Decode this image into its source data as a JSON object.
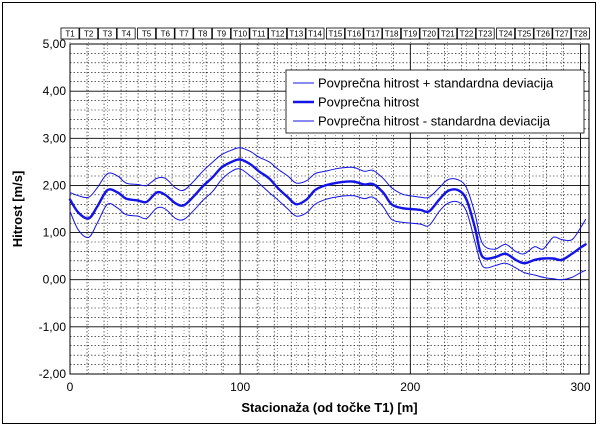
{
  "chart_data": {
    "type": "line",
    "xlabel": "Stacionaža (od točke T1) [m]",
    "ylabel": "Hitrost [m/s]",
    "xlim": [
      0,
      305
    ],
    "ylim": [
      -2,
      5
    ],
    "x_ticks": [
      0,
      100,
      200,
      300
    ],
    "x_tick_labels": [
      "0",
      "100",
      "200",
      "300"
    ],
    "y_ticks": [
      -2,
      -1,
      0,
      1,
      2,
      3,
      4,
      5
    ],
    "y_tick_labels": [
      "-2,00",
      "-1,00",
      "0,00",
      "1,00",
      "2,00",
      "3,00",
      "4,00",
      "5,00"
    ],
    "grid": true,
    "legend_position": "top-right",
    "point_markers": {
      "labels": [
        "T1",
        "T2",
        "T3",
        "T4",
        "T5",
        "T6",
        "T7",
        "T8",
        "T9",
        "T10",
        "T11",
        "T12",
        "T13",
        "T14",
        "T15",
        "T16",
        "T17",
        "T18",
        "T19",
        "T20",
        "T21",
        "T22",
        "T23",
        "T24",
        "T25",
        "T26",
        "T27",
        "T28"
      ],
      "x": [
        0,
        11,
        22,
        33,
        45,
        56,
        67,
        78,
        89,
        100,
        111,
        122,
        133,
        144,
        156,
        167,
        178,
        189,
        200,
        211,
        222,
        233,
        244,
        256,
        267,
        278,
        289,
        300
      ]
    },
    "series": [
      {
        "name": "Povprečna hitrost + standardna deviacija",
        "color": "#1414e6",
        "width": 1,
        "x": [
          0,
          5,
          11,
          16,
          22,
          28,
          33,
          40,
          45,
          51,
          56,
          62,
          67,
          73,
          78,
          84,
          89,
          95,
          100,
          106,
          111,
          117,
          122,
          128,
          133,
          139,
          144,
          150,
          156,
          162,
          167,
          173,
          178,
          184,
          189,
          195,
          200,
          206,
          211,
          217,
          222,
          228,
          233,
          238,
          241,
          244,
          250,
          256,
          262,
          267,
          273,
          278,
          284,
          289,
          295,
          300,
          303
        ],
        "y": [
          1.85,
          1.78,
          1.75,
          1.95,
          2.25,
          2.2,
          2.05,
          2.02,
          2.0,
          2.15,
          2.15,
          1.95,
          1.9,
          2.1,
          2.3,
          2.5,
          2.65,
          2.75,
          2.8,
          2.72,
          2.6,
          2.5,
          2.35,
          2.2,
          2.05,
          2.1,
          2.25,
          2.3,
          2.35,
          2.38,
          2.38,
          2.3,
          2.32,
          2.15,
          1.95,
          1.82,
          1.78,
          1.75,
          1.75,
          1.95,
          2.12,
          2.12,
          1.95,
          1.4,
          0.9,
          0.7,
          0.65,
          0.75,
          0.6,
          0.55,
          0.7,
          0.65,
          0.9,
          0.85,
          0.85,
          1.1,
          1.28
        ]
      },
      {
        "name": "Povprečna hitrost",
        "color": "#1414e6",
        "width": 2.4,
        "x": [
          0,
          5,
          11,
          16,
          22,
          28,
          33,
          40,
          45,
          51,
          56,
          62,
          67,
          73,
          78,
          84,
          89,
          95,
          100,
          106,
          111,
          117,
          122,
          128,
          133,
          139,
          144,
          150,
          156,
          162,
          167,
          173,
          178,
          184,
          189,
          195,
          200,
          206,
          211,
          217,
          222,
          228,
          233,
          238,
          241,
          244,
          250,
          256,
          262,
          267,
          273,
          278,
          284,
          289,
          295,
          300,
          303
        ],
        "y": [
          1.7,
          1.42,
          1.3,
          1.55,
          1.9,
          1.85,
          1.72,
          1.68,
          1.65,
          1.85,
          1.8,
          1.62,
          1.58,
          1.78,
          1.98,
          2.18,
          2.38,
          2.5,
          2.55,
          2.45,
          2.3,
          2.15,
          1.95,
          1.75,
          1.6,
          1.7,
          1.9,
          2.0,
          2.05,
          2.08,
          2.08,
          2.02,
          2.03,
          1.85,
          1.6,
          1.52,
          1.5,
          1.48,
          1.45,
          1.7,
          1.88,
          1.9,
          1.7,
          1.1,
          0.6,
          0.45,
          0.48,
          0.55,
          0.42,
          0.35,
          0.42,
          0.45,
          0.45,
          0.42,
          0.55,
          0.68,
          0.75
        ]
      },
      {
        "name": "Povprečna hitrost - standardna deviacija",
        "color": "#1414e6",
        "width": 1,
        "x": [
          0,
          5,
          11,
          16,
          22,
          28,
          33,
          40,
          45,
          51,
          56,
          62,
          67,
          73,
          78,
          84,
          89,
          95,
          100,
          106,
          111,
          117,
          122,
          128,
          133,
          139,
          144,
          150,
          156,
          162,
          167,
          173,
          178,
          184,
          189,
          195,
          200,
          206,
          211,
          217,
          222,
          228,
          233,
          238,
          241,
          244,
          250,
          256,
          262,
          267,
          273,
          278,
          284,
          289,
          295,
          300,
          303
        ],
        "y": [
          1.45,
          1.05,
          0.9,
          1.2,
          1.6,
          1.52,
          1.38,
          1.35,
          1.3,
          1.52,
          1.5,
          1.3,
          1.28,
          1.48,
          1.68,
          1.88,
          2.12,
          2.3,
          2.35,
          2.2,
          2.05,
          1.85,
          1.7,
          1.5,
          1.35,
          1.42,
          1.6,
          1.7,
          1.75,
          1.78,
          1.78,
          1.72,
          1.75,
          1.55,
          1.28,
          1.22,
          1.2,
          1.18,
          1.15,
          1.45,
          1.62,
          1.65,
          1.45,
          0.8,
          0.4,
          0.25,
          0.3,
          0.35,
          0.25,
          0.15,
          0.1,
          0.05,
          0.02,
          0.0,
          0.05,
          0.15,
          0.2
        ]
      }
    ]
  }
}
